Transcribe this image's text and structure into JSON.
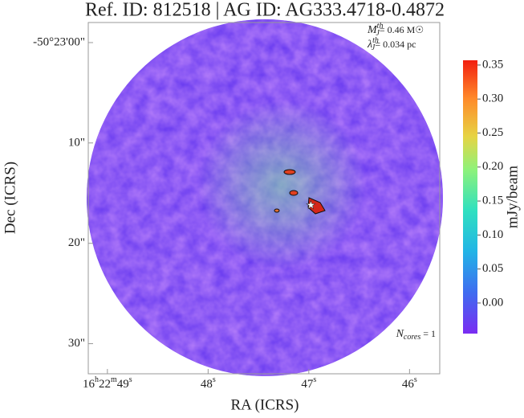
{
  "chart_data": {
    "type": "image",
    "title": "Ref. ID: 812518 | AG ID: AG333.4718-0.4872",
    "xlabel": "RA (ICRS)",
    "ylabel": "Dec (ICRS)",
    "xlim": [
      49.19,
      45.7
    ],
    "xticks": [
      {
        "value": 49,
        "label": "16h22m49s"
      },
      {
        "value": 48,
        "label": "48s"
      },
      {
        "value": 47,
        "label": "47s"
      },
      {
        "value": 46,
        "label": "46s"
      }
    ],
    "ylim": [
      33,
      -2
    ],
    "yticks": [
      {
        "value": 0,
        "label": "-50°23'00\""
      },
      {
        "value": 10,
        "label": "10\""
      },
      {
        "value": 20,
        "label": "20\""
      },
      {
        "value": 30,
        "label": "30\""
      }
    ],
    "cores": [
      {
        "x": 46.98,
        "y": 16.2
      }
    ],
    "annotations": [
      {
        "symbol": "M",
        "sup": "th",
        "sub": "J",
        "text": "= 0.46 M☉"
      },
      {
        "symbol": "λ",
        "sup": "th",
        "sub": "J",
        "text": "= 0.034 pc"
      },
      {
        "symbol": "N",
        "sub": "cores",
        "text": " = 1"
      }
    ],
    "colorbar": {
      "label": "mJy/beam",
      "lim": [
        -0.045,
        0.357
      ],
      "ticks": [
        {
          "value": 0,
          "label": "0.00"
        },
        0.05,
        {
          "value": 0.1,
          "label": "0.10"
        },
        0.15,
        {
          "value": 0.2,
          "label": "0.20"
        },
        0.25,
        {
          "value": 0.3,
          "label": "0.30"
        },
        0.35
      ]
    }
  }
}
